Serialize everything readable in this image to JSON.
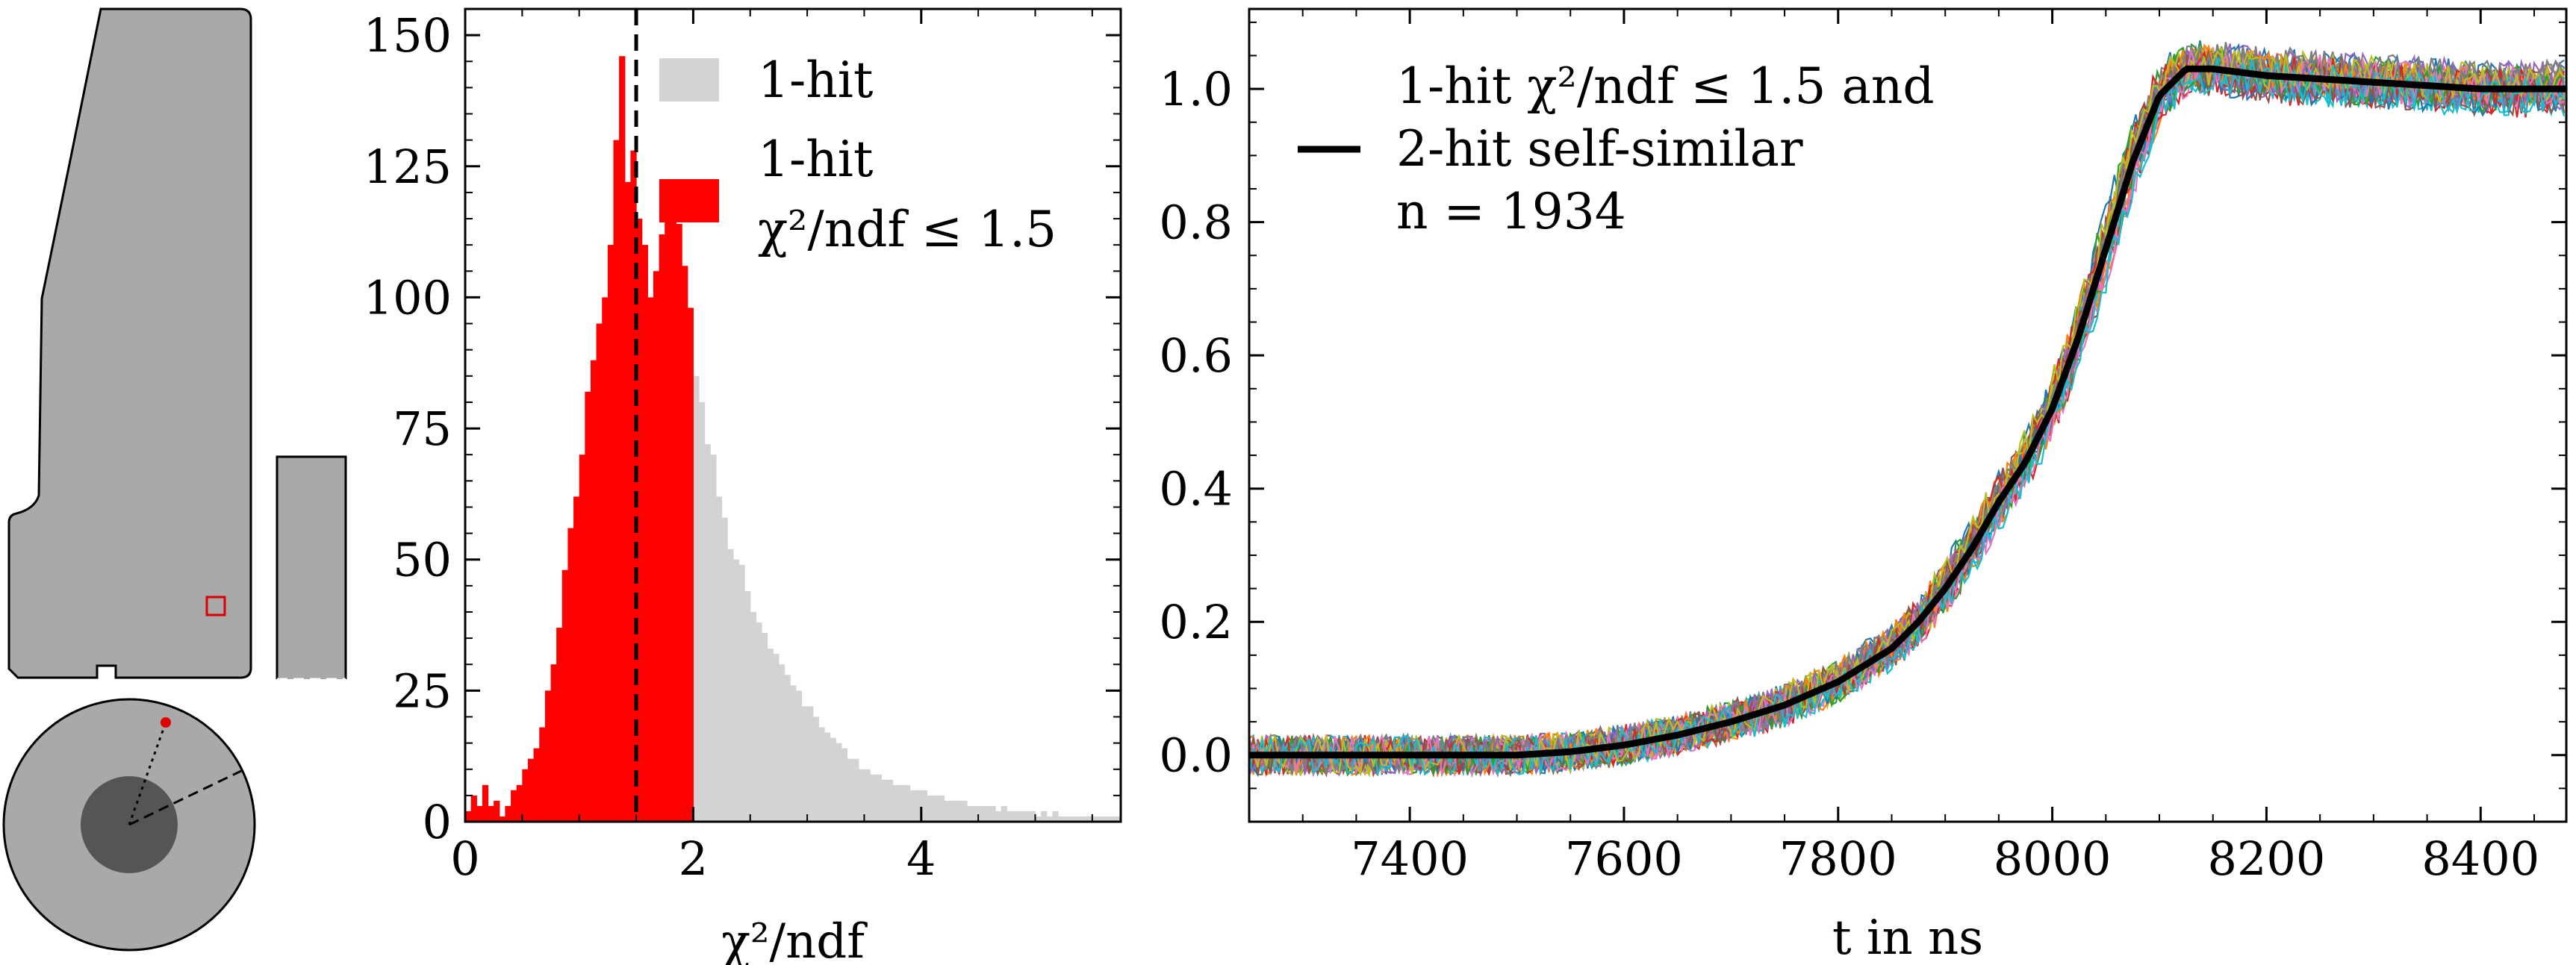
{
  "detector": {
    "side_view": "segmented detector side view, cut-out marker",
    "top_view": "segmented detector top view with hit position"
  },
  "chart_data": [
    {
      "type": "bar",
      "subtype": "histogram",
      "xlabel": "χ²/ndf",
      "ylabel": "",
      "xlim": [
        0,
        5.75
      ],
      "ylim": [
        0,
        155
      ],
      "xticks": [
        "0",
        "2",
        "4"
      ],
      "yticks": [
        "0",
        "25",
        "50",
        "75",
        "100",
        "125",
        "150"
      ],
      "bin_width": 0.05,
      "cut_value": 1.5,
      "legend": [
        {
          "label": "1-hit",
          "color": "#d3d3d3"
        },
        {
          "label": "1-hit",
          "label2": "χ²/ndf ≤ 1.5",
          "color": "#ff0000"
        }
      ],
      "series": [
        {
          "name": "1-hit",
          "color": "#d3d3d3",
          "bin_start": 0.0,
          "values": [
            2,
            5,
            3,
            7,
            3,
            4,
            1,
            3,
            6,
            7,
            10,
            12,
            14,
            18,
            25,
            30,
            37,
            48,
            56,
            62,
            70,
            82,
            88,
            95,
            100,
            110,
            130,
            146,
            122,
            128,
            115,
            110,
            100,
            105,
            112,
            118,
            120,
            114,
            106,
            98,
            85,
            80,
            72,
            70,
            62,
            58,
            52,
            50,
            49,
            44,
            40,
            38,
            36,
            33,
            32,
            30,
            28,
            26,
            25,
            22,
            22,
            20,
            18,
            17,
            16,
            15,
            14,
            12,
            12,
            10,
            10,
            9,
            9,
            8,
            8,
            7,
            7,
            7,
            6,
            6,
            6,
            5,
            5,
            5,
            4,
            4,
            4,
            4,
            3,
            3,
            3,
            3,
            3,
            2,
            3,
            2,
            2,
            2,
            2,
            2,
            1,
            2,
            1,
            2,
            1,
            1,
            1,
            1,
            1,
            1,
            1,
            1,
            1,
            1,
            1
          ]
        },
        {
          "name": "1-hit χ²/ndf ≤ 1.5",
          "color": "#ff0000",
          "bin_start": 0.0,
          "values": [
            2,
            5,
            3,
            7,
            3,
            4,
            1,
            3,
            6,
            7,
            10,
            12,
            14,
            18,
            25,
            30,
            37,
            48,
            56,
            62,
            70,
            82,
            88,
            95,
            100,
            110,
            130,
            146,
            122,
            128,
            115,
            110,
            100,
            105,
            112,
            118,
            120,
            114,
            106,
            98
          ]
        }
      ],
      "grid": false
    },
    {
      "type": "line",
      "xlabel": "t in ns",
      "ylabel": "",
      "xlim": [
        7250,
        8480
      ],
      "ylim": [
        -0.1,
        1.12
      ],
      "xticks": [
        "7400",
        "7600",
        "7800",
        "8000",
        "8200",
        "8400"
      ],
      "yticks": [
        "0.0",
        "0.2",
        "0.4",
        "0.6",
        "0.8",
        "1.0"
      ],
      "legend": {
        "line1": "1-hit χ²/ndf ≤ 1.5 and",
        "line2": "2-hit self-similar",
        "line3": "n = 1934",
        "position": "top-left"
      },
      "series": [
        {
          "name": "mean pulse",
          "color": "#000000",
          "x": [
            7250,
            7300,
            7350,
            7400,
            7450,
            7500,
            7550,
            7600,
            7650,
            7700,
            7750,
            7800,
            7850,
            7875,
            7900,
            7925,
            7950,
            7975,
            8000,
            8025,
            8050,
            8075,
            8100,
            8125,
            8150,
            8200,
            8250,
            8300,
            8350,
            8400,
            8450,
            8480
          ],
          "values": [
            0.0,
            0.0,
            0.0,
            0.0,
            0.0,
            0.0,
            0.005,
            0.015,
            0.03,
            0.05,
            0.075,
            0.11,
            0.16,
            0.2,
            0.25,
            0.31,
            0.38,
            0.44,
            0.52,
            0.63,
            0.76,
            0.89,
            0.99,
            1.03,
            1.03,
            1.02,
            1.015,
            1.01,
            1.005,
            1.0,
            1.0,
            1.0
          ]
        }
      ],
      "trace_colors": [
        "#1f77b4",
        "#ff7f0e",
        "#2ca02c",
        "#d62728",
        "#9467bd",
        "#8c564b",
        "#e377c2",
        "#7f7f7f",
        "#bcbd22",
        "#17becf"
      ],
      "grid": false
    }
  ]
}
